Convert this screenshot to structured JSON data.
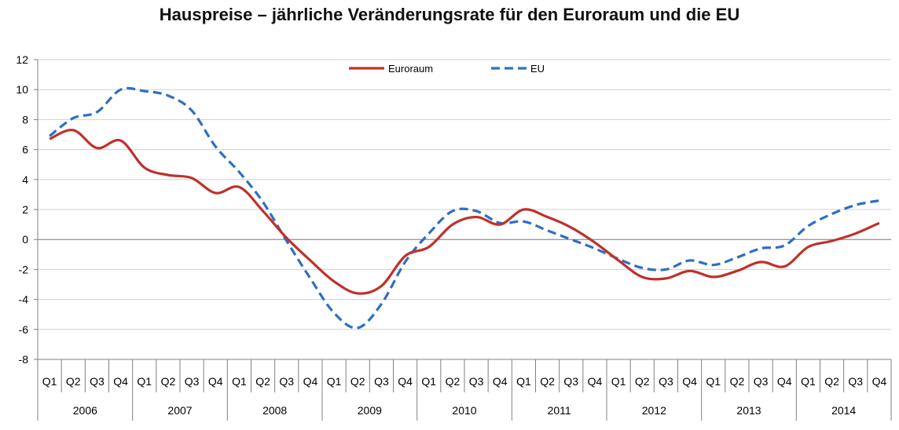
{
  "chart_data": {
    "type": "line",
    "title": "Hauspreise – jährliche Veränderungsrate für den Euroraum und die EU",
    "xlabel": "",
    "ylabel": "",
    "ylim": [
      -8,
      12
    ],
    "yticks": [
      12,
      10,
      8,
      6,
      4,
      2,
      0,
      -2,
      -4,
      -6,
      -8
    ],
    "grid": true,
    "legend_position": "top-center",
    "years": [
      "2006",
      "2007",
      "2008",
      "2009",
      "2010",
      "2011",
      "2012",
      "2013",
      "2014"
    ],
    "quarters": [
      "Q1",
      "Q2",
      "Q3",
      "Q4"
    ],
    "series": [
      {
        "name": "Euroraum",
        "color": "#c0302b",
        "dash": "solid",
        "values": [
          6.7,
          7.3,
          6.1,
          6.6,
          4.8,
          4.3,
          4.1,
          3.1,
          3.5,
          1.9,
          0.1,
          -1.4,
          -2.8,
          -3.6,
          -3.1,
          -1.1,
          -0.5,
          1.0,
          1.5,
          1.0,
          2.0,
          1.5,
          0.8,
          -0.2,
          -1.4,
          -2.5,
          -2.6,
          -2.1,
          -2.5,
          -2.1,
          -1.5,
          -1.8,
          -0.5,
          -0.1,
          0.4,
          1.1
        ]
      },
      {
        "name": "EU",
        "color": "#2e6fc3",
        "dash": "dashed",
        "values": [
          6.9,
          8.1,
          8.5,
          10.0,
          9.9,
          9.6,
          8.6,
          6.2,
          4.5,
          2.5,
          -0.1,
          -2.6,
          -4.9,
          -5.9,
          -4.3,
          -1.5,
          0.4,
          1.9,
          1.9,
          1.1,
          1.2,
          0.6,
          0.0,
          -0.6,
          -1.3,
          -1.9,
          -2.0,
          -1.4,
          -1.7,
          -1.2,
          -0.6,
          -0.4,
          0.9,
          1.7,
          2.3,
          2.6
        ]
      }
    ]
  }
}
